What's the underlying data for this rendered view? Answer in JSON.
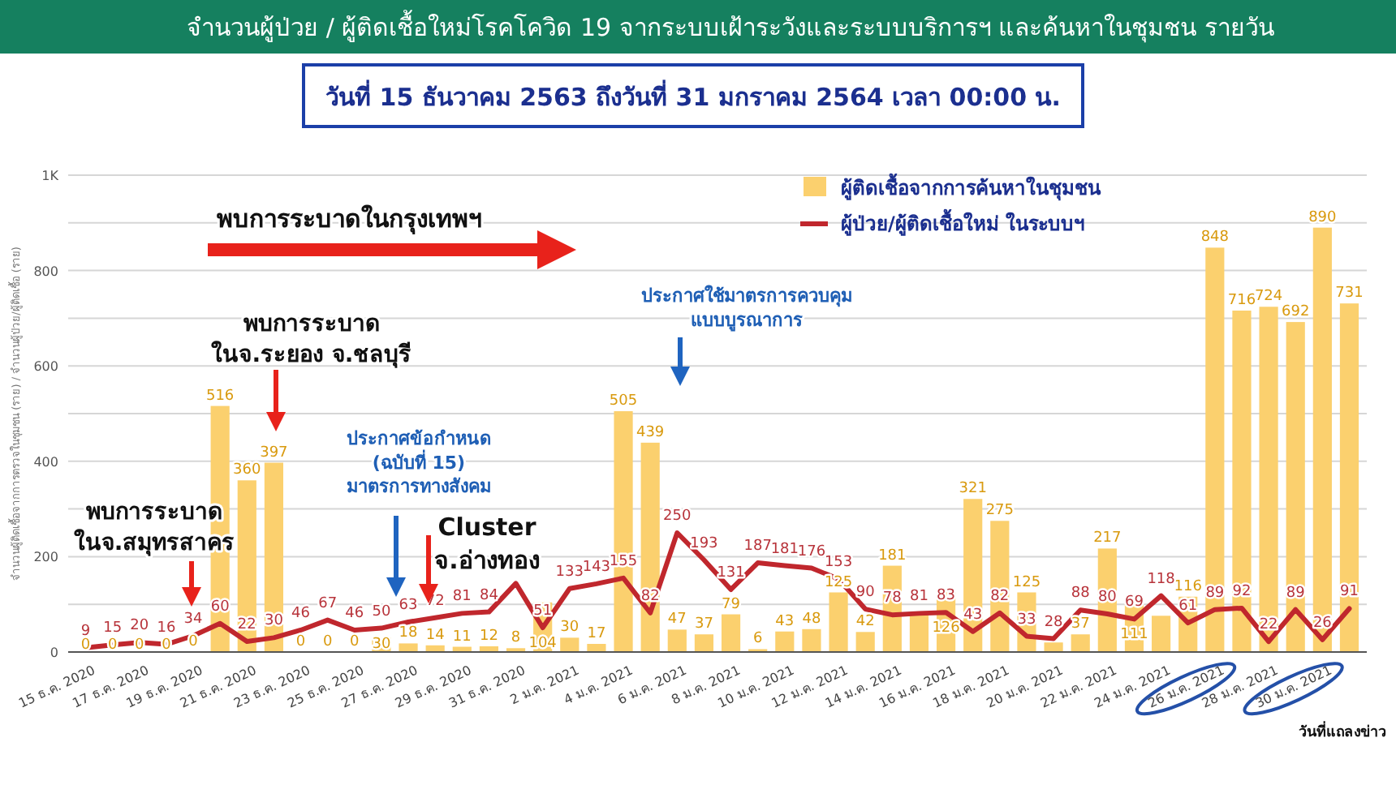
{
  "chart_data": {
    "type": "bar",
    "title": "จำนวนผู้ป่วย / ผู้ติดเชื้อใหม่โรคโควิด 19 จากระบบเฝ้าระวังและระบบบริการฯ และค้นหาในชุมชน รายวัน",
    "subtitle": "วันที่ 15 ธันวาคม  2563 ถึงวันที่ 31 มกราคม 2564 เวลา 00:00 น.",
    "xlabel": "วันที่แถลงข่าว",
    "ylabel": "จำนวนผู้ติดเชื้อจากการตรวจในชุมชน (ราย) / จำนวนผู้ป่วย/ผู้ติดเชื้อ (ราย)",
    "categories": [
      "15 ธ.ค. 2020",
      null,
      "17 ธ.ค. 2020",
      null,
      "19 ธ.ค. 2020",
      null,
      "21 ธ.ค. 2020",
      null,
      "23 ธ.ค. 2020",
      null,
      "25 ธ.ค. 2020",
      null,
      "27 ธ.ค. 2020",
      null,
      "29 ธ.ค. 2020",
      null,
      "31 ธ.ค. 2020",
      null,
      "2 ม.ค. 2021",
      null,
      "4 ม.ค. 2021",
      null,
      "6 ม.ค. 2021",
      null,
      "8 ม.ค. 2021",
      null,
      "10 ม.ค. 2021",
      null,
      "12 ม.ค. 2021",
      null,
      "14 ม.ค. 2021",
      null,
      "16 ม.ค. 2021",
      null,
      "18 ม.ค. 2021",
      null,
      "20 ม.ค. 2021",
      null,
      "22 ม.ค. 2021",
      null,
      "24 ม.ค. 2021",
      null,
      "26 ม.ค. 2021",
      null,
      "28 ม.ค. 2021",
      null,
      "30 ม.ค. 2021",
      null
    ],
    "series": [
      {
        "name": "ผู้ติดเชื้อจากการค้นหาในชุมชน",
        "color": "#fbd06e",
        "values": [
          0,
          0,
          0,
          0,
          0,
          516,
          360,
          397,
          0,
          0,
          0,
          30,
          18,
          14,
          11,
          12,
          8,
          104,
          30,
          17,
          505,
          439,
          47,
          37,
          79,
          6,
          43,
          48,
          125,
          42,
          181,
          80,
          126,
          321,
          275,
          125,
          20,
          37,
          217,
          111,
          76,
          116,
          848,
          716,
          724,
          692,
          890,
          731
        ],
        "value_labels": [
          "0",
          "0",
          "0",
          "0",
          "0",
          "516",
          "360",
          "397",
          "0",
          "0",
          "0",
          "30",
          "18",
          "14",
          "11",
          "12",
          "8",
          "104",
          "30",
          "17",
          "505",
          "439",
          "47",
          "37",
          "79",
          "6",
          "43",
          "48",
          "125",
          "42",
          "181",
          null,
          "126",
          "321",
          "275",
          "125",
          null,
          "37",
          "217",
          "111",
          null,
          "116",
          "848",
          "716",
          "724",
          "692",
          "890",
          "731"
        ]
      },
      {
        "name": "ผู้ป่วย/ผู้ติดเชื้อใหม่ ในระบบฯ",
        "type": "line",
        "color": "#c0272d",
        "values": [
          9,
          15,
          20,
          16,
          34,
          60,
          22,
          30,
          46,
          67,
          46,
          50,
          63,
          72,
          81,
          84,
          144,
          51,
          133,
          143,
          155,
          82,
          250,
          193,
          131,
          187,
          181,
          176,
          153,
          90,
          78,
          81,
          83,
          43,
          82,
          33,
          28,
          88,
          80,
          69,
          118,
          61,
          89,
          92,
          22,
          89,
          26,
          91
        ],
        "value_labels": [
          "9",
          "15",
          "20",
          "16",
          "34",
          "60",
          "22",
          "30",
          "46",
          "67",
          "46",
          "50",
          "63",
          "72",
          "81",
          "84",
          null,
          "51",
          "133",
          "143",
          "155",
          "82",
          "250",
          "193",
          "131",
          "187",
          "181",
          "176",
          "153",
          "90",
          "78",
          "81",
          "83",
          "43",
          "82",
          "33",
          "28",
          "88",
          "80",
          "69",
          "118",
          "61",
          "89",
          "92",
          "22",
          "89",
          "26",
          "91"
        ]
      }
    ],
    "ylim": [
      0,
      1000
    ],
    "yticks": [
      0,
      {
        "value": 100,
        "label": null
      },
      200,
      {
        "value": 300,
        "label": null
      },
      400,
      {
        "value": 500,
        "label": null
      },
      600,
      {
        "value": 700,
        "label": null
      },
      800,
      {
        "value": 900,
        "label": null
      },
      {
        "value": 1000,
        "label": "1K"
      }
    ],
    "grid": "y",
    "legend": "top",
    "annotations": [
      "พบการระบาดในกรุงเทพฯ",
      "พบการระบาด\nในจ.ระยอง จ.ชลบุรี",
      "พบการระบาด\nในจ.สมุทรสาคร",
      "ประกาศข้อกำหนด\n(ฉบับที่ 15)\nมาตรการทางสังคม",
      "Cluster\nจ.อ่างทอง",
      "ประกาศใช้มาตรการควบคุม\nแบบบูรณาการ"
    ]
  }
}
